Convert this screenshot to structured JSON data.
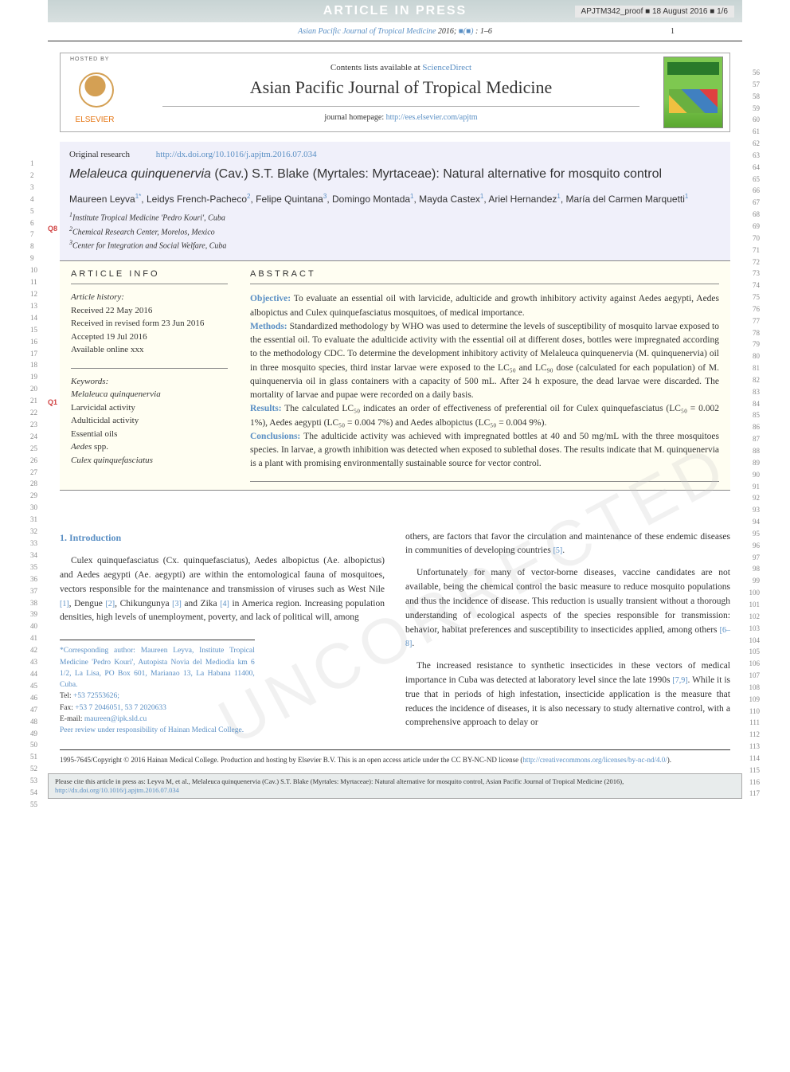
{
  "proof_id": "APJTM342_proof",
  "proof_sep": "■",
  "proof_date": "18 August 2016",
  "proof_pages": "1/6",
  "article_in_press": "ARTICLE IN PRESS",
  "citation_prefix": "Asian Pacific Journal of Tropical Medicine",
  "citation_year": "2016;",
  "citation_vol": "■(■)",
  "citation_pages": ": 1–6",
  "page_number": "1",
  "hosted_by": "HOSTED BY",
  "elsevier": "ELSEVIER",
  "contents_text": "Contents lists available at ",
  "sciencedirect": "ScienceDirect",
  "journal_name": "Asian Pacific Journal of Tropical Medicine",
  "homepage_label": "journal homepage: ",
  "homepage_url": "http://ees.elsevier.com/apjtm",
  "original_research": "Original research",
  "doi": "http://dx.doi.org/10.1016/j.apjtm.2016.07.034",
  "title_italic": "Melaleuca quinquenervia",
  "title_rest": " (Cav.) S.T. Blake (Myrtales: Myrtaceae): Natural alternative for mosquito control",
  "q8": "Q8",
  "q1": "Q1",
  "authors_html": "Maureen Leyva<sup>1*</sup>, Leidys French-Pacheco<sup>2</sup>, Felipe Quintana<sup>3</sup>, Domingo Montada<sup>1</sup>, Mayda Castex<sup>1</sup>, Ariel Hernandez<sup>1</sup>, María del Carmen Marquetti<sup>1</sup>",
  "affil1": "Institute Tropical Medicine 'Pedro Kouri', Cuba",
  "affil2": "Chemical Research Center, Morelos, Mexico",
  "affil3": "Center for Integration and Social Welfare, Cuba",
  "article_info_heading": "ARTICLE INFO",
  "history_label": "Article history:",
  "received": "Received 22 May 2016",
  "revised": "Received in revised form 23 Jun 2016",
  "accepted": "Accepted 19 Jul 2016",
  "online": "Available online xxx",
  "keywords_label": "Keywords:",
  "kw1": "Melaleuca quinquenervia",
  "kw2": "Larvicidal activity",
  "kw3": "Adulticidal activity",
  "kw4": "Essential oils",
  "kw5": "Aedes",
  "kw5_suffix": " spp.",
  "kw6": "Culex quinquefasciatus",
  "abstract_heading": "ABSTRACT",
  "abs_obj_label": "Objective:",
  "abs_obj": " To evaluate an essential oil with larvicide, adulticide and growth inhibitory activity against Aedes aegypti, Aedes albopictus and Culex quinquefasciatus mosquitoes, of medical importance.",
  "abs_met_label": "Methods:",
  "abs_met": " Standardized methodology by WHO was used to determine the levels of susceptibility of mosquito larvae exposed to the essential oil. To evaluate the adulticide activity with the essential oil at different doses, bottles were impregnated according to the methodology CDC. To determine the development inhibitory activity of Melaleuca quinquenervia (M. quinquenervia) oil in three mosquito species, third instar larvae were exposed to the LC₅₀ and LC₉₀ dose (calculated for each population) of M. quinquenervia oil in glass containers with a capacity of 500 mL. After 24 h exposure, the dead larvae were discarded. The mortality of larvae and pupae were recorded on a daily basis.",
  "abs_res_label": "Results:",
  "abs_res": " The calculated LC₅₀ indicates an order of effectiveness of preferential oil for Culex quinquefasciatus (LC₅₀ = 0.002 1%), Aedes aegypti (LC₅₀ = 0.004 7%) and Aedes albopictus (LC₅₀ = 0.004 9%).",
  "abs_con_label": "Conclusions:",
  "abs_con": " The adulticide activity was achieved with impregnated bottles at 40 and 50 mg/mL with the three mosquitoes species. In larvae, a growth inhibition was detected when exposed to sublethal doses. The results indicate that M. quinquenervia is a plant with promising environmentally sustainable source for vector control.",
  "intro_heading": "1. Introduction",
  "intro_p1_a": "Culex quinquefasciatus (Cx. quinquefasciatus), Aedes albopictus (Ae. albopictus) and Aedes aegypti (Ae. aegypti) are within the entomological fauna of mosquitoes, vectors responsible for the maintenance and transmission of viruses such as West Nile ",
  "ref1": "[1]",
  "intro_p1_b": ", Dengue ",
  "ref2": "[2]",
  "intro_p1_c": ", Chikungunya ",
  "ref3": "[3]",
  "intro_p1_d": " and Zika ",
  "ref4": "[4]",
  "intro_p1_e": " in America region. Increasing population densities, high levels of unemployment, poverty, and lack of political will, among",
  "col2_p1_a": "others, are factors that favor the circulation and maintenance of these endemic diseases in communities of developing countries ",
  "ref5": "[5]",
  "col2_p1_b": ".",
  "col2_p2_a": "Unfortunately for many of vector-borne diseases, vaccine candidates are not available, being the chemical control the basic measure to reduce mosquito populations and thus the incidence of disease. This reduction is usually transient without a thorough understanding of ecological aspects of the species responsible for transmission: behavior, habitat preferences and susceptibility to insecticides applied, among others ",
  "ref68": "[6–8]",
  "col2_p2_b": ".",
  "col2_p3_a": "The increased resistance to synthetic insecticides in these vectors of medical importance in Cuba was detected at laboratory level since the late 1990s ",
  "ref79": "[7,9]",
  "col2_p3_b": ". While it is true that in periods of high infestation, insecticide application is the measure that reduces the incidence of diseases, it is also necessary to study alternative control, with a comprehensive approach to delay or",
  "fn_corresp": "*Corresponding author: Maureen Leyva, Institute Tropical Medicine 'Pedro Kouri', Autopista Novia del Mediodía km 6 1/2, La Lisa, PO Box 601, Marianao 13, La Habana 11400, Cuba.",
  "fn_tel_label": "Tel: ",
  "fn_tel": "+53 72553626;",
  "fn_fax_label": "Fax: ",
  "fn_fax": "+53 7 2046051, 53 7 2020633",
  "fn_email_label": "E-mail: ",
  "fn_email": "maureen@ipk.sld.cu",
  "fn_peer": "Peer review under responsibility of Hainan Medical College.",
  "copyright_text": "1995-7645/Copyright © 2016 Hainan Medical College. Production and hosting by Elsevier B.V. This is an open access article under the CC BY-NC-ND license (",
  "copyright_url": "http://creativecommons.org/licenses/by-nc-nd/4.0/",
  "copyright_end": ").",
  "cite_text": "Please cite this article in press as: Leyva M, et al., Melaleuca quinquenervia (Cav.) S.T. Blake (Myrtales: Myrtaceae): Natural alternative for mosquito control, Asian Pacific Journal of Tropical Medicine (2016), ",
  "cite_url": "http://dx.doi.org/10.1016/j.apjtm.2016.07.034",
  "line_left_start": 1,
  "line_left_end": 55,
  "line_right_start": 56,
  "line_right_end": 117,
  "colors": {
    "link": "#5a8fc4",
    "banner_bg": "#c8d4d4",
    "meta_bg": "#f0f0fa",
    "abstract_bg": "#fffef2",
    "q_marker": "#d04040",
    "elsevier_orange": "#e67817"
  }
}
